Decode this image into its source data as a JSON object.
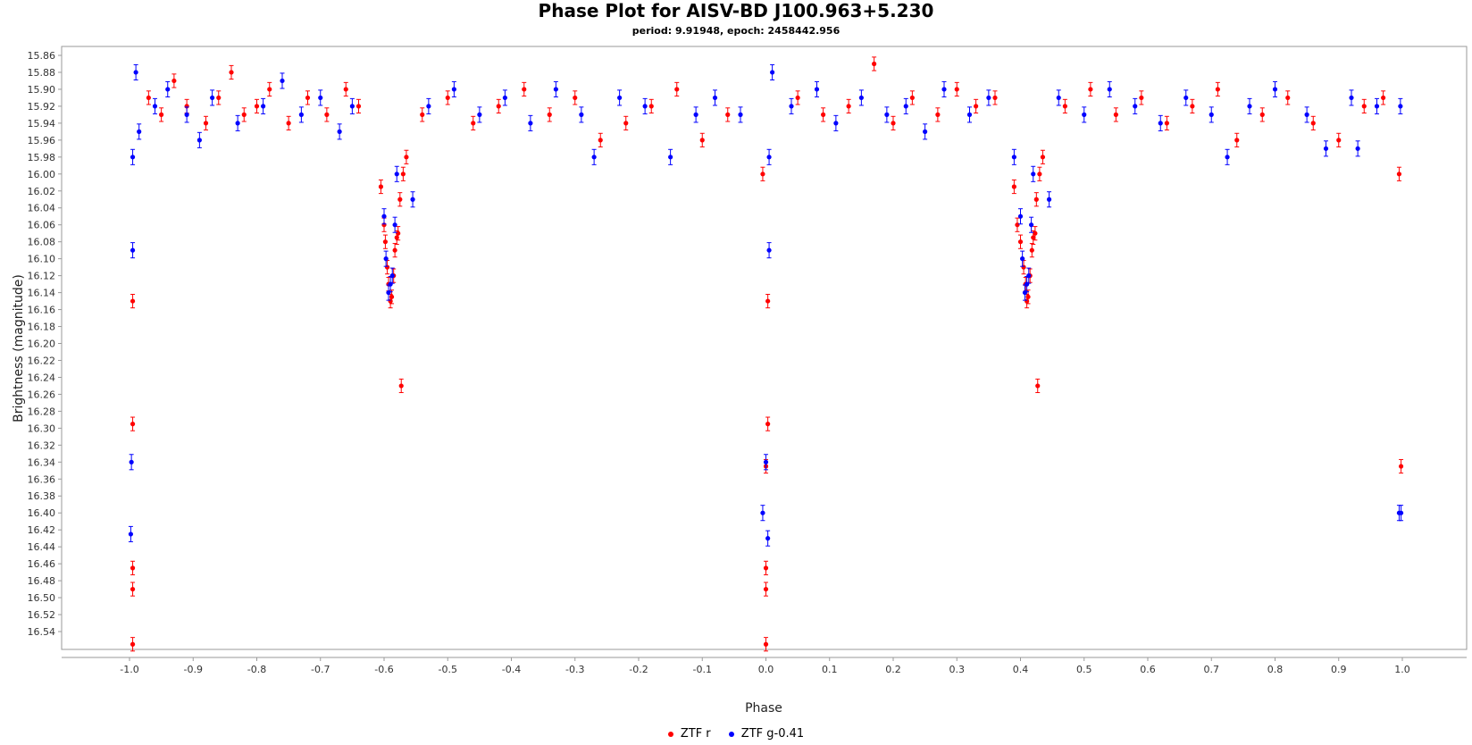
{
  "chart_data": {
    "type": "scatter",
    "title": "Phase Plot for AISV-BD J100.963+5.230",
    "subtitle": "period: 9.91948, epoch: 2458442.956",
    "xlabel": "Phase",
    "ylabel": "Brightness (magnitude)",
    "xlim": [
      -1.1,
      1.1
    ],
    "ylim": [
      16.56,
      15.85
    ],
    "y_inverted": true,
    "x_ticks": [
      "-1.0",
      "-0.9",
      "-0.8",
      "-0.7",
      "-0.6",
      "-0.5",
      "-0.4",
      "-0.3",
      "-0.2",
      "-0.1",
      "0.0",
      "0.1",
      "0.2",
      "0.3",
      "0.4",
      "0.5",
      "0.6",
      "0.7",
      "0.8",
      "0.9",
      "1.0"
    ],
    "y_ticks": [
      "15.86",
      "15.88",
      "15.90",
      "15.92",
      "15.94",
      "15.96",
      "15.98",
      "16.00",
      "16.02",
      "16.04",
      "16.06",
      "16.08",
      "16.10",
      "16.12",
      "16.14",
      "16.16",
      "16.18",
      "16.20",
      "16.22",
      "16.24",
      "16.26",
      "16.28",
      "16.30",
      "16.32",
      "16.34",
      "16.36",
      "16.38",
      "16.40",
      "16.42",
      "16.44",
      "16.46",
      "16.48",
      "16.50",
      "16.52",
      "16.54"
    ],
    "grid": false,
    "legend_position": "bottom",
    "series": [
      {
        "name": "ZTF r",
        "color": "#ff0000",
        "error": 0.008,
        "points": [
          [
            -0.995,
            16.555
          ],
          [
            -0.995,
            16.49
          ],
          [
            -0.995,
            16.465
          ],
          [
            -0.995,
            16.295
          ],
          [
            -0.995,
            16.15
          ],
          [
            -0.605,
            16.015
          ],
          [
            -0.6,
            16.06
          ],
          [
            -0.598,
            16.08
          ],
          [
            -0.595,
            16.11
          ],
          [
            -0.593,
            16.13
          ],
          [
            -0.59,
            16.15
          ],
          [
            -0.588,
            16.145
          ],
          [
            -0.585,
            16.12
          ],
          [
            -0.583,
            16.09
          ],
          [
            -0.58,
            16.075
          ],
          [
            -0.578,
            16.07
          ],
          [
            -0.575,
            16.03
          ],
          [
            -0.573,
            16.25
          ],
          [
            -0.57,
            16.0
          ],
          [
            -0.565,
            15.98
          ],
          [
            -0.97,
            15.91
          ],
          [
            -0.95,
            15.93
          ],
          [
            -0.93,
            15.89
          ],
          [
            -0.91,
            15.92
          ],
          [
            -0.88,
            15.94
          ],
          [
            -0.86,
            15.91
          ],
          [
            -0.84,
            15.88
          ],
          [
            -0.82,
            15.93
          ],
          [
            -0.8,
            15.92
          ],
          [
            -0.78,
            15.9
          ],
          [
            -0.75,
            15.94
          ],
          [
            -0.72,
            15.91
          ],
          [
            -0.69,
            15.93
          ],
          [
            -0.66,
            15.9
          ],
          [
            -0.64,
            15.92
          ],
          [
            -0.54,
            15.93
          ],
          [
            -0.5,
            15.91
          ],
          [
            -0.46,
            15.94
          ],
          [
            -0.42,
            15.92
          ],
          [
            -0.38,
            15.9
          ],
          [
            -0.34,
            15.93
          ],
          [
            -0.3,
            15.91
          ],
          [
            -0.26,
            15.96
          ],
          [
            -0.22,
            15.94
          ],
          [
            -0.18,
            15.92
          ],
          [
            -0.14,
            15.9
          ],
          [
            -0.1,
            15.96
          ],
          [
            -0.06,
            15.93
          ],
          [
            -0.005,
            16.0
          ],
          [
            0.0,
            16.345
          ],
          [
            0.0,
            16.465
          ],
          [
            0.0,
            16.49
          ],
          [
            0.0,
            16.555
          ],
          [
            0.003,
            16.295
          ],
          [
            0.003,
            16.15
          ],
          [
            0.05,
            15.91
          ],
          [
            0.09,
            15.93
          ],
          [
            0.13,
            15.92
          ],
          [
            0.17,
            15.87
          ],
          [
            0.2,
            15.94
          ],
          [
            0.23,
            15.91
          ],
          [
            0.27,
            15.93
          ],
          [
            0.3,
            15.9
          ],
          [
            0.33,
            15.92
          ],
          [
            0.36,
            15.91
          ],
          [
            0.39,
            16.015
          ],
          [
            0.395,
            16.06
          ],
          [
            0.4,
            16.08
          ],
          [
            0.405,
            16.11
          ],
          [
            0.408,
            16.13
          ],
          [
            0.41,
            16.15
          ],
          [
            0.412,
            16.145
          ],
          [
            0.415,
            16.12
          ],
          [
            0.418,
            16.09
          ],
          [
            0.42,
            16.075
          ],
          [
            0.423,
            16.07
          ],
          [
            0.425,
            16.03
          ],
          [
            0.427,
            16.25
          ],
          [
            0.43,
            16.0
          ],
          [
            0.435,
            15.98
          ],
          [
            0.47,
            15.92
          ],
          [
            0.51,
            15.9
          ],
          [
            0.55,
            15.93
          ],
          [
            0.59,
            15.91
          ],
          [
            0.63,
            15.94
          ],
          [
            0.67,
            15.92
          ],
          [
            0.71,
            15.9
          ],
          [
            0.74,
            15.96
          ],
          [
            0.78,
            15.93
          ],
          [
            0.82,
            15.91
          ],
          [
            0.86,
            15.94
          ],
          [
            0.9,
            15.96
          ],
          [
            0.94,
            15.92
          ],
          [
            0.97,
            15.91
          ],
          [
            0.995,
            16.0
          ],
          [
            0.998,
            16.345
          ]
        ]
      },
      {
        "name": "ZTF g-0.41",
        "color": "#0000ff",
        "error": 0.009,
        "points": [
          [
            -0.995,
            15.98
          ],
          [
            -0.995,
            16.09
          ],
          [
            -0.997,
            16.34
          ],
          [
            -0.998,
            16.425
          ],
          [
            -0.99,
            15.88
          ],
          [
            -0.985,
            15.95
          ],
          [
            -0.96,
            15.92
          ],
          [
            -0.94,
            15.9
          ],
          [
            -0.91,
            15.93
          ],
          [
            -0.89,
            15.96
          ],
          [
            -0.87,
            15.91
          ],
          [
            -0.83,
            15.94
          ],
          [
            -0.79,
            15.92
          ],
          [
            -0.76,
            15.89
          ],
          [
            -0.73,
            15.93
          ],
          [
            -0.7,
            15.91
          ],
          [
            -0.67,
            15.95
          ],
          [
            -0.65,
            15.92
          ],
          [
            -0.6,
            16.05
          ],
          [
            -0.597,
            16.1
          ],
          [
            -0.593,
            16.14
          ],
          [
            -0.59,
            16.13
          ],
          [
            -0.587,
            16.12
          ],
          [
            -0.583,
            16.06
          ],
          [
            -0.58,
            16.0
          ],
          [
            -0.555,
            16.03
          ],
          [
            -0.53,
            15.92
          ],
          [
            -0.49,
            15.9
          ],
          [
            -0.45,
            15.93
          ],
          [
            -0.41,
            15.91
          ],
          [
            -0.37,
            15.94
          ],
          [
            -0.33,
            15.9
          ],
          [
            -0.29,
            15.93
          ],
          [
            -0.27,
            15.98
          ],
          [
            -0.23,
            15.91
          ],
          [
            -0.19,
            15.92
          ],
          [
            -0.15,
            15.98
          ],
          [
            -0.11,
            15.93
          ],
          [
            -0.08,
            15.91
          ],
          [
            -0.04,
            15.93
          ],
          [
            -0.005,
            16.4
          ],
          [
            0.0,
            16.34
          ],
          [
            0.003,
            16.43
          ],
          [
            0.005,
            15.98
          ],
          [
            0.005,
            16.09
          ],
          [
            0.01,
            15.88
          ],
          [
            0.04,
            15.92
          ],
          [
            0.08,
            15.9
          ],
          [
            0.11,
            15.94
          ],
          [
            0.15,
            15.91
          ],
          [
            0.19,
            15.93
          ],
          [
            0.22,
            15.92
          ],
          [
            0.25,
            15.95
          ],
          [
            0.28,
            15.9
          ],
          [
            0.32,
            15.93
          ],
          [
            0.35,
            15.91
          ],
          [
            0.39,
            15.98
          ],
          [
            0.4,
            16.05
          ],
          [
            0.403,
            16.1
          ],
          [
            0.407,
            16.14
          ],
          [
            0.41,
            16.13
          ],
          [
            0.413,
            16.12
          ],
          [
            0.417,
            16.06
          ],
          [
            0.42,
            16.0
          ],
          [
            0.445,
            16.03
          ],
          [
            0.46,
            15.91
          ],
          [
            0.5,
            15.93
          ],
          [
            0.54,
            15.9
          ],
          [
            0.58,
            15.92
          ],
          [
            0.62,
            15.94
          ],
          [
            0.66,
            15.91
          ],
          [
            0.7,
            15.93
          ],
          [
            0.725,
            15.98
          ],
          [
            0.76,
            15.92
          ],
          [
            0.8,
            15.9
          ],
          [
            0.85,
            15.93
          ],
          [
            0.88,
            15.97
          ],
          [
            0.92,
            15.91
          ],
          [
            0.93,
            15.97
          ],
          [
            0.96,
            15.92
          ],
          [
            0.995,
            16.4
          ],
          [
            0.997,
            15.92
          ],
          [
            0.998,
            16.4
          ]
        ]
      }
    ]
  }
}
